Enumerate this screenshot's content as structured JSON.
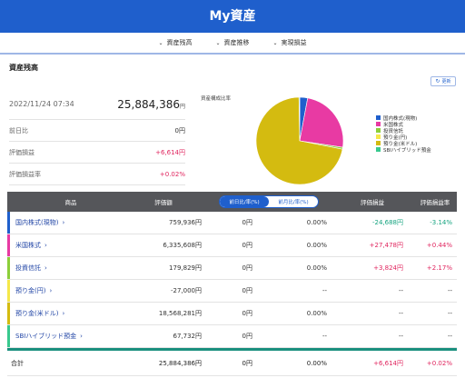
{
  "header": {
    "title": "My資産"
  },
  "subnav": {
    "items": [
      "資産残高",
      "資産推移",
      "実現損益"
    ]
  },
  "section": {
    "title": "資産残高",
    "refresh_label": "更新"
  },
  "summary": {
    "datetime": "2022/11/24 07:34",
    "total_value": "25,884,386",
    "unit": "円",
    "rows": [
      {
        "label": "前日比",
        "value": "0円",
        "tone": "neutral"
      },
      {
        "label": "評価損益",
        "value": "+6,614円",
        "tone": "pos"
      },
      {
        "label": "評価損益率",
        "value": "+0.02%",
        "tone": "pos"
      }
    ]
  },
  "pie": {
    "title": "資産構成比率",
    "slices": [
      {
        "name": "国内株式(現物)",
        "value": 759936,
        "color": "#1f5fcc"
      },
      {
        "name": "米国株式",
        "value": 6335608,
        "color": "#e83aa3"
      },
      {
        "name": "投資信託",
        "value": 179829,
        "color": "#8ccf3a"
      },
      {
        "name": "預り金(円)",
        "value": 0,
        "color": "#f5e84a"
      },
      {
        "name": "預り金(米ドル)",
        "value": 18568281,
        "color": "#d4bb10"
      },
      {
        "name": "SBIハイブリッド預金",
        "value": 67732,
        "color": "#38c98e"
      }
    ]
  },
  "table": {
    "headers": {
      "product": "商品",
      "value": "評価額",
      "toggle_day": "前日比/率(%)",
      "toggle_month": "前月比/率(%)",
      "pl": "評価損益",
      "pl_rate": "評価損益率"
    },
    "rows": [
      {
        "name": "国内株式(現物)",
        "value": "759,936円",
        "d1": "0円",
        "d2": "0.00%",
        "pl": "-24,688円",
        "plr": "-3.14%",
        "tone": "neg",
        "color": "#1f5fcc"
      },
      {
        "name": "米国株式",
        "value": "6,335,608円",
        "d1": "0円",
        "d2": "0.00%",
        "pl": "+27,478円",
        "plr": "+0.44%",
        "tone": "pos",
        "color": "#e83aa3"
      },
      {
        "name": "投資信託",
        "value": "179,829円",
        "d1": "0円",
        "d2": "0.00%",
        "pl": "+3,824円",
        "plr": "+2.17%",
        "tone": "pos",
        "color": "#8ccf3a"
      },
      {
        "name": "預り金(円)",
        "value": "-27,000円",
        "d1": "0円",
        "d2": "--",
        "pl": "--",
        "plr": "--",
        "tone": "neutral",
        "color": "#f5e84a"
      },
      {
        "name": "預り金(米ドル)",
        "value": "18,568,281円",
        "d1": "0円",
        "d2": "0.00%",
        "pl": "--",
        "plr": "--",
        "tone": "neutral",
        "color": "#d4bb10"
      },
      {
        "name": "SBIハイブリッド預金",
        "value": "67,732円",
        "d1": "0円",
        "d2": "--",
        "pl": "--",
        "plr": "--",
        "tone": "neutral",
        "color": "#38c98e"
      }
    ],
    "total": {
      "label": "合計",
      "value": "25,884,386円",
      "d1": "0円",
      "d2": "0.00%",
      "pl": "+6,614円",
      "plr": "+0.02%"
    }
  }
}
